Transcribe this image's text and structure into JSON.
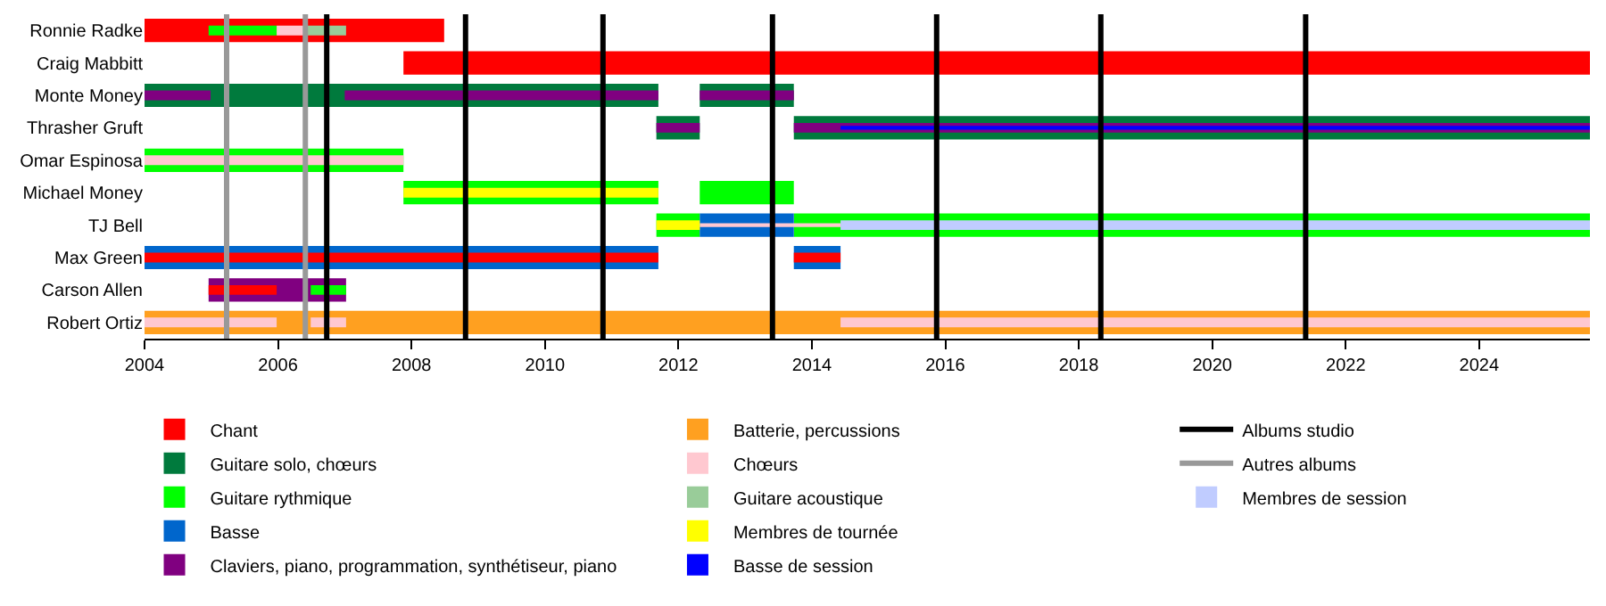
{
  "chart_data": {
    "type": "bar",
    "orientation": "horizontal",
    "legend": "bottom",
    "categories": [
      "Ronnie Radke",
      "Craig Mabbitt",
      "Monte Money",
      "Thrasher Gruft",
      "Omar Espinosa",
      "Michael Money",
      "TJ Bell",
      "Max Green",
      "Carson Allen",
      "Robert Ortiz"
    ],
    "xlim": [
      2004,
      2025.66
    ],
    "xticks": [
      2004,
      2006,
      2008,
      2010,
      2012,
      2014,
      2016,
      2018,
      2020,
      2022,
      2024
    ],
    "series": [
      {
        "name": "Chant",
        "color": "#ff0000",
        "values": [
          4.49,
          17.78,
          null,
          null,
          null,
          null,
          null,
          null,
          null,
          null
        ],
        "base": [
          2004,
          2007.88,
          null,
          null,
          null,
          null,
          null,
          null,
          null,
          null
        ]
      },
      {
        "name": "Guitare solo, chœurs",
        "color": "#007a3d",
        "values": [
          null,
          null,
          7.7,
          0.65,
          null,
          null,
          null,
          null,
          null,
          null
        ],
        "base": [
          null,
          null,
          2004,
          2011.67,
          null,
          null,
          null,
          null,
          null,
          null
        ]
      },
      {
        "color": "#007a3d",
        "values": [
          null,
          null,
          1.41,
          11.93,
          null,
          null,
          null,
          null,
          null,
          null
        ],
        "base": [
          null,
          null,
          2012.32,
          2013.73,
          null,
          null,
          null,
          null,
          null,
          null
        ]
      },
      {
        "name": "Guitare rythmique",
        "color": "#00ff00",
        "values": [
          null,
          null,
          null,
          null,
          3.88,
          3.82,
          0.65,
          null,
          null,
          null
        ],
        "base": [
          null,
          null,
          null,
          null,
          2004,
          2007.88,
          2011.67,
          null,
          null,
          null
        ]
      },
      {
        "color": "#00ff00",
        "values": [
          null,
          null,
          null,
          null,
          null,
          1.41,
          11.93,
          null,
          null,
          null
        ],
        "base": [
          null,
          null,
          null,
          null,
          null,
          2012.32,
          2013.73,
          null,
          null,
          null
        ]
      },
      {
        "name": "Basse",
        "color": "#0066cc",
        "values": [
          null,
          null,
          null,
          null,
          null,
          null,
          1.41,
          7.7,
          null,
          null
        ],
        "base": [
          null,
          null,
          null,
          null,
          null,
          null,
          2012.32,
          2004,
          null,
          null
        ]
      },
      {
        "color": "#0066cc",
        "values": [
          null,
          null,
          null,
          null,
          null,
          null,
          null,
          0.7,
          null,
          null
        ],
        "base": [
          null,
          null,
          null,
          null,
          null,
          null,
          null,
          2013.73,
          null,
          null
        ]
      },
      {
        "name": "Claviers, piano, programmation, synthétiseur, piano",
        "color": "#800080",
        "values": [
          null,
          null,
          null,
          null,
          null,
          null,
          null,
          null,
          2.06,
          null
        ],
        "base": [
          null,
          null,
          null,
          null,
          null,
          null,
          null,
          null,
          2004.96,
          null
        ]
      },
      {
        "name": "Batterie, percussions",
        "color": "#ffa020",
        "values": [
          null,
          null,
          null,
          null,
          null,
          null,
          null,
          null,
          null,
          21.66
        ],
        "base": [
          null,
          null,
          null,
          null,
          null,
          null,
          null,
          null,
          null,
          2004
        ]
      },
      {
        "color": "#ff0000",
        "values": [
          null,
          null,
          null,
          null,
          null,
          null,
          null,
          7.7,
          1.02,
          null
        ],
        "base": [
          null,
          null,
          null,
          null,
          null,
          null,
          null,
          2004,
          2004.96,
          null
        ]
      },
      {
        "color": "#ff0000",
        "values": [
          null,
          null,
          null,
          null,
          null,
          null,
          null,
          0.7,
          null,
          null
        ],
        "base": [
          null,
          null,
          null,
          null,
          null,
          null,
          null,
          2013.73,
          null,
          null
        ]
      },
      {
        "color": "#00ff00",
        "values": [
          1.02,
          null,
          null,
          null,
          null,
          null,
          null,
          null,
          0.53,
          null
        ],
        "base": [
          2004.96,
          null,
          null,
          null,
          null,
          null,
          null,
          null,
          2006.49,
          null
        ]
      },
      {
        "name": "Chœurs",
        "color": "#ffc8d0",
        "values": [
          0.45,
          null,
          null,
          null,
          3.88,
          null,
          2.11,
          null,
          null,
          1.98
        ],
        "base": [
          2005.98,
          null,
          null,
          null,
          2004,
          null,
          2012.32,
          null,
          null,
          2004
        ]
      },
      {
        "color": "#ffc8d0",
        "values": [
          null,
          null,
          null,
          null,
          null,
          null,
          null,
          null,
          null,
          0.53
        ],
        "base": [
          null,
          null,
          null,
          null,
          null,
          null,
          null,
          null,
          null,
          2006.49
        ]
      },
      {
        "color": "#ffc8d0",
        "values": [
          null,
          null,
          null,
          null,
          null,
          null,
          null,
          null,
          null,
          11.23
        ],
        "base": [
          null,
          null,
          null,
          null,
          null,
          null,
          null,
          null,
          null,
          2014.43
        ]
      },
      {
        "name": "Guitare acoustique",
        "color": "#99cc99",
        "values": [
          0.59,
          null,
          null,
          null,
          null,
          null,
          null,
          null,
          null,
          null
        ],
        "base": [
          2006.43,
          null,
          null,
          null,
          null,
          null,
          null,
          null,
          null,
          null
        ]
      },
      {
        "color": "#800080",
        "values": [
          null,
          null,
          0.99,
          0.65,
          null,
          null,
          null,
          null,
          null,
          null
        ],
        "base": [
          null,
          null,
          2004,
          2011.67,
          null,
          null,
          null,
          null,
          null,
          null
        ]
      },
      {
        "color": "#800080",
        "values": [
          null,
          null,
          4.7,
          11.93,
          null,
          null,
          null,
          null,
          null,
          null
        ],
        "base": [
          null,
          null,
          2007.0,
          2013.73,
          null,
          null,
          null,
          null,
          null,
          null
        ]
      },
      {
        "color": "#800080",
        "values": [
          null,
          null,
          1.41,
          null,
          null,
          null,
          null,
          null,
          null,
          null
        ],
        "base": [
          null,
          null,
          2012.32,
          null,
          null,
          null,
          null,
          null,
          null,
          null
        ]
      },
      {
        "name": "Membres de tournée",
        "color": "#ffff00",
        "values": [
          null,
          null,
          null,
          null,
          null,
          3.82,
          0.65,
          null,
          null,
          null
        ],
        "base": [
          null,
          null,
          null,
          null,
          null,
          2007.88,
          2011.67,
          null,
          null,
          null
        ]
      },
      {
        "name": "Basse de session",
        "color": "#0000ff",
        "values": [
          null,
          null,
          null,
          11.23,
          null,
          null,
          null,
          null,
          null,
          null
        ],
        "base": [
          null,
          null,
          null,
          2014.43,
          null,
          null,
          null,
          null,
          null,
          null
        ]
      },
      {
        "name": "Membres de session",
        "color": "#c0ccff",
        "values": [
          null,
          null,
          null,
          null,
          null,
          null,
          11.23,
          null,
          null,
          null
        ],
        "base": [
          null,
          null,
          null,
          null,
          null,
          null,
          2014.43,
          null,
          null,
          null
        ]
      }
    ],
    "ref_lines": [
      {
        "axis": "x",
        "value": 2006.73,
        "color": "#000000",
        "label": "Albums studio"
      },
      {
        "axis": "x",
        "value": 2008.81,
        "color": "#000000"
      },
      {
        "axis": "x",
        "value": 2010.87,
        "color": "#000000"
      },
      {
        "axis": "x",
        "value": 2013.41,
        "color": "#000000"
      },
      {
        "axis": "x",
        "value": 2015.87,
        "color": "#000000"
      },
      {
        "axis": "x",
        "value": 2018.33,
        "color": "#000000"
      },
      {
        "axis": "x",
        "value": 2021.4,
        "color": "#000000"
      },
      {
        "axis": "x",
        "value": 2005.23,
        "color": "#999999",
        "label": "Autres albums"
      },
      {
        "axis": "x",
        "value": 2006.41,
        "color": "#999999"
      }
    ]
  }
}
